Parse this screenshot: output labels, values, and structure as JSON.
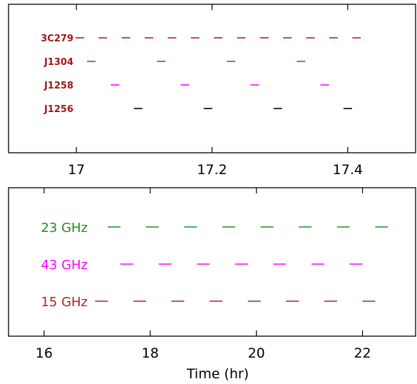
{
  "chart_data": [
    {
      "type": "scatter",
      "title": "",
      "xlabel": "",
      "ylabel": "",
      "xlim": [
        16.9,
        17.5
      ],
      "xticks": [
        17,
        17.2,
        17.4
      ],
      "xtick_labels": [
        "17",
        "17.2",
        "17.4"
      ],
      "grid": false,
      "legend": "none",
      "series": [
        {
          "name": "3C279",
          "color": "#b22222",
          "x": [
            17.005,
            17.039,
            17.073,
            17.107,
            17.141,
            17.175,
            17.209,
            17.243,
            17.277,
            17.311,
            17.345,
            17.379,
            17.413
          ]
        },
        {
          "name": "J1304",
          "color": "#228b22",
          "x": [
            17.022,
            17.125,
            17.228,
            17.331
          ]
        },
        {
          "name": "J1258",
          "color": "#ff00ff",
          "x": [
            17.057,
            17.16,
            17.263,
            17.366
          ]
        },
        {
          "name": "J1256",
          "color": "#000000",
          "x": [
            17.091,
            17.194,
            17.297,
            17.4
          ]
        }
      ]
    },
    {
      "type": "scatter",
      "title": "",
      "xlabel": "Time (hr)",
      "ylabel": "",
      "xlim": [
        15.33,
        23.0
      ],
      "xticks": [
        16,
        18,
        20,
        22
      ],
      "xtick_labels": [
        "16",
        "18",
        "20",
        "22"
      ],
      "grid": false,
      "legend": "none",
      "series": [
        {
          "name": "23 GHz",
          "color": "#228b22",
          "x": [
            17.32,
            18.04,
            18.76,
            19.48,
            20.2,
            20.92,
            21.64,
            22.36
          ]
        },
        {
          "name": "43 GHz",
          "color": "#ff00ff",
          "x": [
            17.56,
            18.28,
            19.0,
            19.72,
            20.44,
            21.16,
            21.88
          ]
        },
        {
          "name": "15 GHz",
          "color": "#b22222",
          "x": [
            17.08,
            17.8,
            18.52,
            19.24,
            19.96,
            20.68,
            21.4,
            22.12
          ]
        }
      ]
    }
  ]
}
